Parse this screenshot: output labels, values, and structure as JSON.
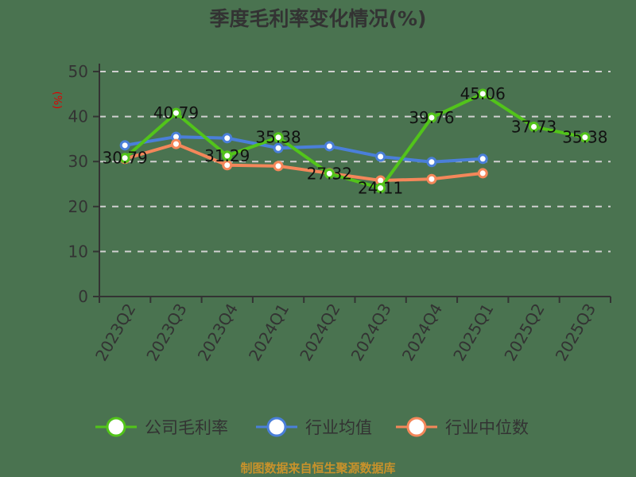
{
  "chart_data": {
    "type": "line",
    "title": "季度毛利率变化情况(%)",
    "ylabel": "(%)",
    "xlabel": "",
    "ylim": [
      0,
      50
    ],
    "yticks": [
      0,
      10,
      20,
      30,
      40,
      50
    ],
    "grid": "horizontal dashed",
    "legend_position": "bottom",
    "categories": [
      "2023Q2",
      "2023Q3",
      "2023Q4",
      "2024Q1",
      "2024Q2",
      "2024Q3",
      "2024Q4",
      "2025Q1",
      "2025Q2",
      "2025Q3"
    ],
    "series": [
      {
        "name": "公司毛利率",
        "color": "#52c41a",
        "values": [
          30.79,
          40.79,
          31.29,
          35.38,
          27.32,
          24.11,
          39.76,
          45.06,
          37.73,
          35.38
        ],
        "labels": [
          "30.79",
          "40.79",
          "31.29",
          "35.38",
          "27.32",
          "24.11",
          "39.76",
          "45.06",
          "37.73",
          "35.38"
        ]
      },
      {
        "name": "行业均值",
        "color": "#4a7fd9",
        "values": [
          33.6,
          35.5,
          35.2,
          33.0,
          33.4,
          31.1,
          29.9,
          30.6,
          null,
          null
        ]
      },
      {
        "name": "行业中位数",
        "color": "#f4875a",
        "values": [
          30.6,
          33.9,
          29.2,
          29.0,
          27.4,
          25.8,
          26.1,
          27.4,
          null,
          null
        ]
      }
    ],
    "footer": "制图数据来自恒生聚源数据库"
  }
}
